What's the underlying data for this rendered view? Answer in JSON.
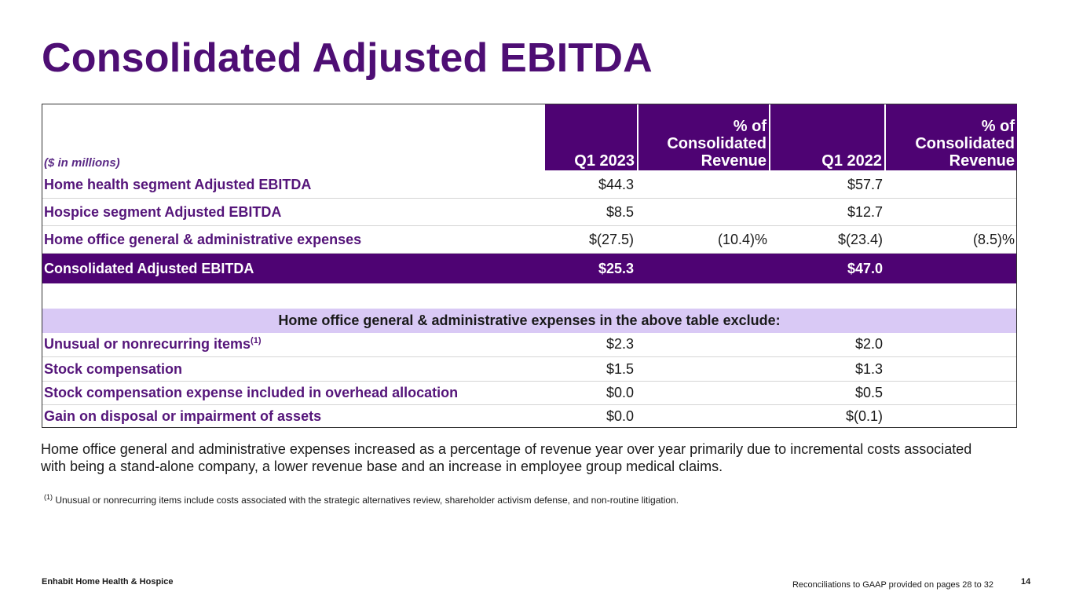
{
  "title": "Consolidated Adjusted EBITDA",
  "table": {
    "units_label": "($ in millions)",
    "headers": [
      "Q1 2023",
      "% of Consolidated Revenue",
      "Q1 2022",
      "% of Consolidated Revenue"
    ],
    "header_lines": {
      "pct_line1": "% of",
      "pct_line2": "Consolidated",
      "pct_line3": "Revenue"
    },
    "rows": [
      {
        "label": "Home health segment Adjusted EBITDA",
        "q1_2023": "$44.3",
        "pct_2023": "",
        "q1_2022": "$57.7",
        "pct_2022": ""
      },
      {
        "label": "Hospice segment Adjusted EBITDA",
        "q1_2023": "$8.5",
        "pct_2023": "",
        "q1_2022": "$12.7",
        "pct_2022": ""
      },
      {
        "label": "Home office general & administrative expenses",
        "q1_2023": "$(27.5)",
        "pct_2023": "(10.4)%",
        "q1_2022": "$(23.4)",
        "pct_2022": "(8.5)%"
      }
    ],
    "total": {
      "label": "Consolidated Adjusted EBITDA",
      "q1_2023": "$25.3",
      "q1_2022": "$47.0"
    },
    "exclude_heading": "Home office general & administrative expenses in the above table exclude:",
    "exclusions": [
      {
        "label": "Unusual or nonrecurring items",
        "footnote": "(1)",
        "q1_2023": "$2.3",
        "q1_2022": "$2.0"
      },
      {
        "label": "Stock compensation",
        "q1_2023": "$1.5",
        "q1_2022": "$1.3"
      },
      {
        "label": "Stock compensation expense included in overhead allocation",
        "q1_2023": "$0.0",
        "q1_2022": "$0.5"
      },
      {
        "label": "Gain on disposal or impairment of assets",
        "q1_2023": "$0.0",
        "q1_2022": "$(0.1)"
      }
    ]
  },
  "commentary": "Home office general and administrative expenses increased as a percentage of revenue year over year primarily due to incremental costs associated with being a stand-alone company, a lower revenue base and an increase in employee group medical claims.",
  "footnote": {
    "marker": "(1)",
    "text": "Unusual or nonrecurring items include costs associated with the strategic alternatives review, shareholder activism defense, and non-routine litigation."
  },
  "footer": {
    "brand": "Enhabit Home Health & Hospice",
    "reconciliation": "Reconciliations to GAAP provided on pages 28 to 32",
    "page_number": "14"
  }
}
